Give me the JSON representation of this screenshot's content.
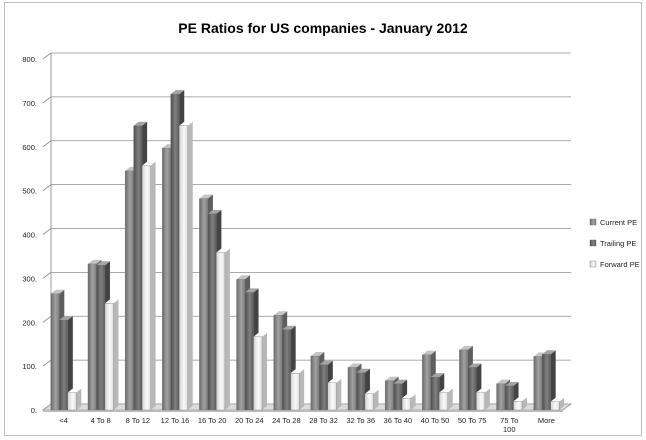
{
  "chart_data": {
    "type": "bar",
    "title": "PE Ratios for US companies - January 2012",
    "xlabel": "",
    "ylabel": "",
    "ylim": [
      0,
      800
    ],
    "yticks": [
      "0.",
      "100.",
      "200.",
      "300.",
      "400.",
      "500.",
      "600.",
      "700.",
      "800."
    ],
    "categories": [
      "<4",
      "4 To 8",
      "8 To 12",
      "12 To 16",
      "16 To 20",
      "20 To 24",
      "24 To 28",
      "28 To 32",
      "32 To 36",
      "36 To 40",
      "40 To 50",
      "50 To 75",
      "75 To 100",
      "More"
    ],
    "series": [
      {
        "name": "Current PE",
        "color": "#8c8c8c",
        "values": [
          265,
          333,
          545,
          597,
          482,
          298,
          216,
          123,
          97,
          67,
          126,
          137,
          60,
          122
        ]
      },
      {
        "name": "Trailing PE",
        "color": "#6e6e6e",
        "values": [
          205,
          330,
          648,
          720,
          447,
          268,
          183,
          103,
          85,
          60,
          75,
          97,
          55,
          127
        ]
      },
      {
        "name": "Forward PE",
        "color": "#ededed",
        "values": [
          40,
          243,
          557,
          648,
          359,
          167,
          84,
          62,
          37,
          27,
          40,
          40,
          20,
          19
        ]
      }
    ],
    "grid": true,
    "legend_position": "right",
    "style": "3d-clustered-columns"
  }
}
